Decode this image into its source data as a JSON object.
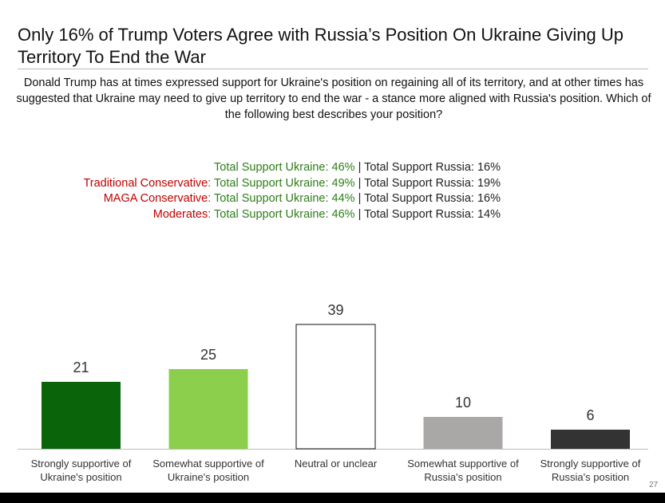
{
  "chart_data": {
    "type": "bar",
    "title": "Only 16% of Trump Voters Agree with Russia’s Position On Ukraine Giving Up Territory To End the War",
    "subtitle": "Donald Trump has at times expressed support for Ukraine's position on regaining all of its territory, and at other times has suggested that Ukraine may need to give up territory to end the war - a stance more aligned with Russia's position. Which of the following best describes your position?",
    "annotations": [
      [
        {
          "text": "Total Support Ukraine: 46%",
          "color": "#2e7d18"
        },
        {
          "text": " | Total Support Russia: 16%",
          "color": "#222222"
        }
      ],
      [
        {
          "text": "Traditional Conservative",
          "color": "#c00000"
        },
        {
          "text": ": Total Support Ukraine: 49%",
          "color": "#2e7d18"
        },
        {
          "text": " | Total Support Russia: 19%",
          "color": "#222222"
        }
      ],
      [
        {
          "text": "MAGA Conservative",
          "color": "#c00000"
        },
        {
          "text": ": Total Support Ukraine: 44%",
          "color": "#2e7d18"
        },
        {
          "text": " | Total Support Russia: 16%",
          "color": "#222222"
        }
      ],
      [
        {
          "text": "Moderates",
          "color": "#c00000"
        },
        {
          "text": ": Total Support Ukraine: 46%",
          "color": "#2e7d18"
        },
        {
          "text": " | Total Support Russia: 14%",
          "color": "#222222"
        }
      ]
    ],
    "categories": [
      "Strongly supportive of Ukraine's position",
      "Somewhat supportive of Ukraine's position",
      "Neutral or unclear",
      "Somewhat supportive of Russia's position",
      "Strongly supportive of Russia's position"
    ],
    "values": [
      21,
      25,
      39,
      10,
      6
    ],
    "colors": [
      "#0a640a",
      "#8ccf4c",
      "#ffffff",
      "#aaa7a7",
      "#333333"
    ],
    "page_number": "27"
  }
}
